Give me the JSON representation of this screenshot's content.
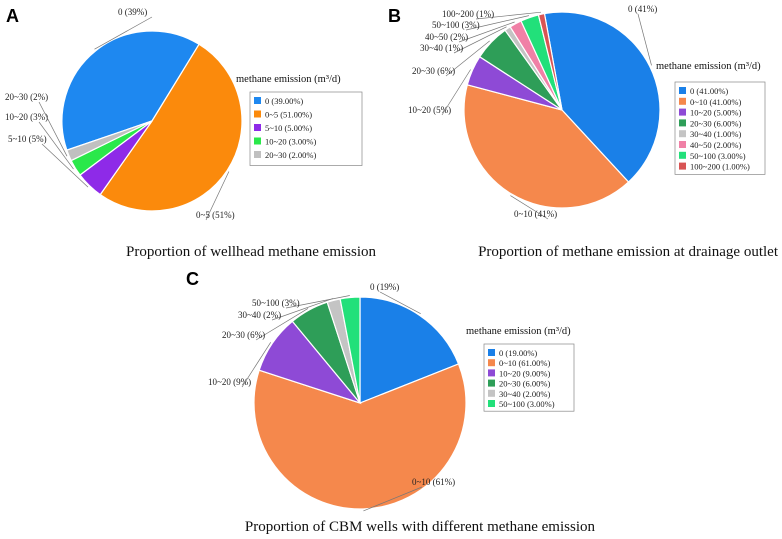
{
  "chart_data": [
    {
      "id": "A",
      "type": "pie",
      "panel_label": "A",
      "title": "Proportion of wellhead methane emission",
      "legend_title": "methane emission (m³/d)",
      "categories": [
        "0",
        "0~5",
        "5~10",
        "10~20",
        "20~30"
      ],
      "values": [
        39,
        51,
        5,
        3,
        2
      ],
      "colors": [
        "#1e88f0",
        "#fb8a0c",
        "#8e2ae8",
        "#2ae84a",
        "#c0c0c0"
      ],
      "slice_labels": [
        "0 (39%)",
        "0~5 (51%)",
        "5~10 (5%)",
        "10~20 (3%)",
        "20~30 (2%)"
      ],
      "legend_entries": [
        "0 (39.00%)",
        "0~5 (51.00%)",
        "5~10 (5.00%)",
        "10~20 (3.00%)",
        "20~30 (2.00%)"
      ],
      "legend_position": "right"
    },
    {
      "id": "B",
      "type": "pie",
      "panel_label": "B",
      "title": "Proportion of methane emission at drainage outlet",
      "legend_title": "methane emission (m³/d)",
      "categories": [
        "0",
        "0~10",
        "10~20",
        "20~30",
        "30~40",
        "40~50",
        "50~100",
        "100~200"
      ],
      "values": [
        41,
        41,
        5,
        6,
        1,
        2,
        3,
        1
      ],
      "colors": [
        "#1a80e8",
        "#f5884c",
        "#8e4ad6",
        "#2e9e58",
        "#c4c4c4",
        "#f080a6",
        "#22e07a",
        "#d85454"
      ],
      "slice_labels": [
        "0 (41%)",
        "0~10 (41%)",
        "10~20 (5%)",
        "20~30 (6%)",
        "30~40 (1%)",
        "40~50 (2%)",
        "50~100 (3%)",
        "100~200 (1%)"
      ],
      "legend_entries": [
        "0 (41.00%)",
        "0~10 (41.00%)",
        "10~20 (5.00%)",
        "20~30 (6.00%)",
        "30~40 (1.00%)",
        "40~50 (2.00%)",
        "50~100 (3.00%)",
        "100~200 (1.00%)"
      ],
      "legend_position": "right"
    },
    {
      "id": "C",
      "type": "pie",
      "panel_label": "C",
      "title": "Proportion of CBM wells with different methane emission",
      "legend_title": "methane emission (m³/d)",
      "categories": [
        "0",
        "0~10",
        "10~20",
        "20~30",
        "30~40",
        "50~100"
      ],
      "values": [
        19,
        61,
        9,
        6,
        2,
        3
      ],
      "colors": [
        "#1a80e8",
        "#f5884c",
        "#8e4ad6",
        "#2e9e58",
        "#c4c4c4",
        "#22e07a"
      ],
      "slice_labels": [
        "0 (19%)",
        "0~10 (61%)",
        "10~20 (9%)",
        "20~30 (6%)",
        "30~40 (2%)",
        "50~100 (3%)"
      ],
      "legend_entries": [
        "0 (19.00%)",
        "0~10 (61.00%)",
        "10~20 (9.00%)",
        "20~30 (6.00%)",
        "30~40 (2.00%)",
        "50~100 (3.00%)"
      ],
      "legend_position": "right"
    }
  ]
}
